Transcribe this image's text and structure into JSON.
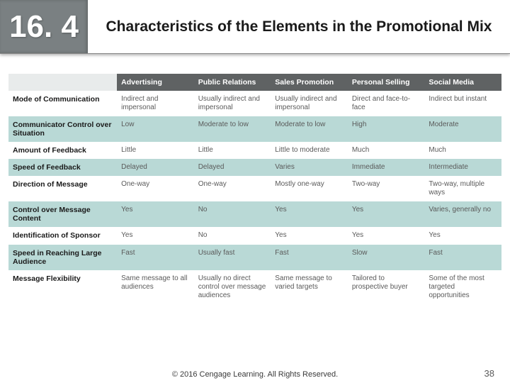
{
  "header": {
    "section_number": "16. 4",
    "title": "Characteristics of the Elements in the Promotional Mix"
  },
  "table": {
    "type": "table",
    "header_bg": "#5f6263",
    "header_fg": "#ffffff",
    "row_alt_bg": "#b9d9d6",
    "row_bg": "#ffffff",
    "columns": [
      "",
      "Advertising",
      "Public Relations",
      "Sales Promotion",
      "Personal Selling",
      "Social Media"
    ],
    "rows": [
      [
        "Mode of Communication",
        "Indirect and impersonal",
        "Usually indirect and impersonal",
        "Usually indirect and impersonal",
        "Direct and face-to-face",
        "Indirect but instant"
      ],
      [
        "Communicator Control over Situation",
        "Low",
        "Moderate to low",
        "Moderate to low",
        "High",
        "Moderate"
      ],
      [
        "Amount of Feedback",
        "Little",
        "Little",
        "Little to moderate",
        "Much",
        "Much"
      ],
      [
        "Speed of Feedback",
        "Delayed",
        "Delayed",
        "Varies",
        "Immediate",
        "Intermediate"
      ],
      [
        "Direction of Message",
        "One-way",
        "One-way",
        "Mostly one-way",
        "Two-way",
        "Two-way, multiple ways"
      ],
      [
        "Control over Message Content",
        "Yes",
        "No",
        "Yes",
        "Yes",
        "Varies, generally no"
      ],
      [
        "Identification of Sponsor",
        "Yes",
        "No",
        "Yes",
        "Yes",
        "Yes"
      ],
      [
        "Speed in Reaching Large Audience",
        "Fast",
        "Usually fast",
        "Fast",
        "Slow",
        "Fast"
      ],
      [
        "Message Flexibility",
        "Same message to all audiences",
        "Usually no direct control over message audiences",
        "Same message to varied targets",
        "Tailored to prospective buyer",
        "Some of the most targeted opportunities"
      ]
    ]
  },
  "footer": {
    "copyright": "© 2016 Cengage Learning. All Rights Reserved.",
    "page_number": "38"
  }
}
